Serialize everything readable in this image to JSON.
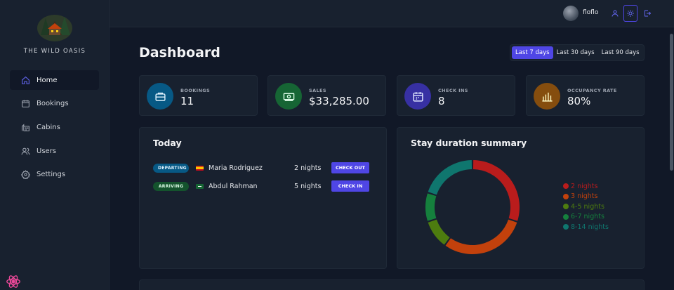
{
  "sidebar": {
    "brand": "THE WILD OASIS",
    "items": [
      {
        "label": "Home",
        "icon": "home-icon",
        "active": true
      },
      {
        "label": "Bookings",
        "icon": "calendar-icon"
      },
      {
        "label": "Cabins",
        "icon": "cabins-icon"
      },
      {
        "label": "Users",
        "icon": "users-icon"
      },
      {
        "label": "Settings",
        "icon": "settings-icon"
      }
    ]
  },
  "header": {
    "username": "floflo",
    "icons": [
      "user-icon",
      "sun-icon",
      "logout-icon"
    ]
  },
  "main": {
    "title": "Dashboard",
    "filters": [
      {
        "label": "Last 7 days",
        "active": true
      },
      {
        "label": "Last 30 days"
      },
      {
        "label": "Last 90 days"
      }
    ],
    "stats": [
      {
        "label": "BOOKINGS",
        "value": "11",
        "icon": "briefcase-icon",
        "color": "#075985"
      },
      {
        "label": "SALES",
        "value": "$33,285.00",
        "icon": "banknotes-icon",
        "color": "#166534"
      },
      {
        "label": "CHECK INS",
        "value": "8",
        "icon": "calendar-days-icon",
        "color": "#3730a3"
      },
      {
        "label": "OCCUPANCY RATE",
        "value": "80%",
        "icon": "chart-bar-icon",
        "color": "#854d0e"
      }
    ],
    "today": {
      "title": "Today",
      "activities": [
        {
          "status": "DEPARTING",
          "flag": "spain-flag-icon",
          "guest": "Maria Rodriguez",
          "nights": "2 nights",
          "action": "CHECK OUT",
          "badge_bg": "#075985",
          "badge_fg": "#e0f2fe"
        },
        {
          "status": "ARRIVING",
          "flag": "saudi-flag-icon",
          "guest": "Abdul Rahman",
          "nights": "5 nights",
          "action": "CHECK IN",
          "badge_bg": "#14532d",
          "badge_fg": "#dcfce7"
        }
      ]
    },
    "duration": {
      "title": "Stay duration summary"
    }
  },
  "chart_data": {
    "type": "pie",
    "categories": [
      "2 nights",
      "3 nights",
      "4-5 nights",
      "6-7 nights",
      "8-14 nights"
    ],
    "values": [
      3,
      3,
      1,
      1,
      2
    ],
    "colors": [
      "#b91c1c",
      "#c2410c",
      "#4d7c0f",
      "#15803d",
      "#0f766e"
    ],
    "legend_position": "right"
  }
}
